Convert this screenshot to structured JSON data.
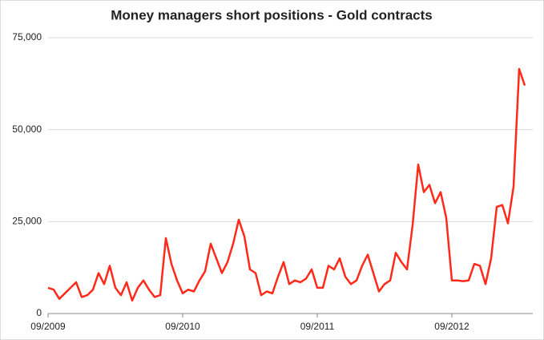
{
  "chart_data": {
    "type": "line",
    "title": "Money managers short positions - Gold contracts",
    "categories": [
      "09/2009",
      null,
      null,
      null,
      null,
      null,
      null,
      null,
      null,
      null,
      null,
      null,
      null,
      null,
      null,
      null,
      null,
      null,
      null,
      null,
      null,
      null,
      null,
      null,
      "09/2010",
      null,
      null,
      null,
      null,
      null,
      null,
      null,
      null,
      null,
      null,
      null,
      null,
      null,
      null,
      null,
      null,
      null,
      null,
      null,
      null,
      null,
      null,
      null,
      "09/2011",
      null,
      null,
      null,
      null,
      null,
      null,
      null,
      null,
      null,
      null,
      null,
      null,
      null,
      null,
      null,
      null,
      null,
      null,
      null,
      null,
      null,
      null,
      null,
      "09/2012",
      null,
      null,
      null,
      null,
      null,
      null,
      null,
      null,
      null,
      null,
      null,
      null,
      null
    ],
    "series": [
      {
        "name": "Money managers short positions",
        "color": "#ff2a1a",
        "values": [
          7000,
          6500,
          4000,
          5500,
          7000,
          8500,
          4500,
          5000,
          6500,
          11000,
          8000,
          13000,
          7000,
          5000,
          8500,
          3500,
          7000,
          9000,
          6500,
          4500,
          5000,
          20500,
          13500,
          9000,
          5500,
          6500,
          6000,
          9000,
          11500,
          19000,
          15000,
          11000,
          14000,
          19000,
          25500,
          21000,
          12000,
          11000,
          5000,
          6000,
          5500,
          10000,
          14000,
          8000,
          9000,
          8500,
          9500,
          12000,
          7000,
          7000,
          13000,
          12000,
          15000,
          10000,
          8000,
          9000,
          13000,
          16000,
          11000,
          6000,
          8000,
          9000,
          16500,
          14000,
          12000,
          24000,
          40500,
          33000,
          35000,
          30000,
          33000,
          26000,
          9000,
          9000,
          8800,
          9000,
          13500,
          13000,
          8000,
          15000,
          29000,
          29500,
          24500,
          34500,
          66500,
          62000
        ]
      }
    ],
    "ylim": [
      0,
      75000
    ],
    "yticks": [
      0,
      {
        "value": 25000,
        "label": "25,000"
      },
      {
        "value": 50000,
        "label": "50,000"
      },
      {
        "value": 75000,
        "label": "75,000"
      }
    ],
    "grid": true
  }
}
